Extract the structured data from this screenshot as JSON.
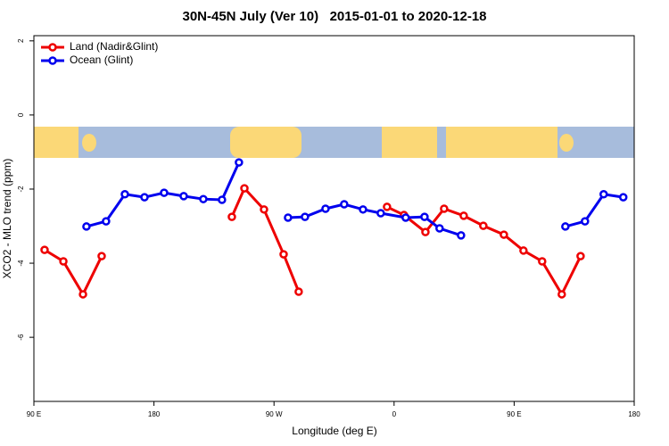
{
  "chart_data": {
    "type": "line",
    "title": "30N-45N July (Ver 10)   2015-01-01 to 2020-12-18",
    "x_label": "Longitude (deg E)",
    "y_label": "XCO2 - MLO trend (ppm)",
    "xlim": [
      90,
      540
    ],
    "ylim": [
      -7.73,
      2.14
    ],
    "xticks": [
      {
        "value": 90,
        "label": "90 E"
      },
      {
        "value": 180,
        "label": "180"
      },
      {
        "value": 270,
        "label": "90 W"
      },
      {
        "value": 360,
        "label": "0"
      },
      {
        "value": 450,
        "label": "90 E"
      },
      {
        "value": 540,
        "label": "180"
      }
    ],
    "yticks": [
      2,
      0,
      -2,
      -4,
      -6
    ],
    "legend": "top-left",
    "series": [
      {
        "name": "Land (Nadir&Glint)",
        "color": "#ee0000",
        "x": [
          98.0,
          112.1,
          126.8,
          140.8,
          null,
          238.4,
          247.8,
          262.5,
          277.2,
          288.5,
          null,
          354.7,
          367.4,
          383.5,
          397.5,
          412.2,
          426.9,
          442.3,
          457.0,
          471.0,
          485.7,
          499.8
        ],
        "values": [
          -3.64,
          -3.95,
          -4.84,
          -3.81,
          null,
          -2.75,
          -1.98,
          -2.55,
          -3.76,
          -4.77,
          null,
          -2.48,
          -2.7,
          -3.16,
          -2.53,
          -2.72,
          -2.99,
          -3.23,
          -3.66,
          -3.95,
          -4.84,
          -3.81
        ]
      },
      {
        "name": "Ocean (Glint)",
        "color": "#0000ee",
        "x": [
          129.4,
          144.1,
          158.2,
          172.9,
          187.6,
          202.3,
          217.0,
          231.0,
          243.7,
          null,
          280.5,
          293.2,
          308.6,
          322.6,
          336.7,
          350.0,
          368.7,
          382.8,
          394.1,
          410.2,
          null,
          488.4,
          503.1,
          517.1,
          531.8
        ],
        "values": [
          -3.01,
          -2.87,
          -2.14,
          -2.22,
          -2.1,
          -2.19,
          -2.27,
          -2.29,
          -1.28,
          null,
          -2.77,
          -2.75,
          -2.53,
          -2.41,
          -2.55,
          -2.65,
          -2.77,
          -2.75,
          -3.06,
          -3.25,
          null,
          -3.01,
          -2.87,
          -2.14,
          -2.22
        ]
      }
    ]
  }
}
